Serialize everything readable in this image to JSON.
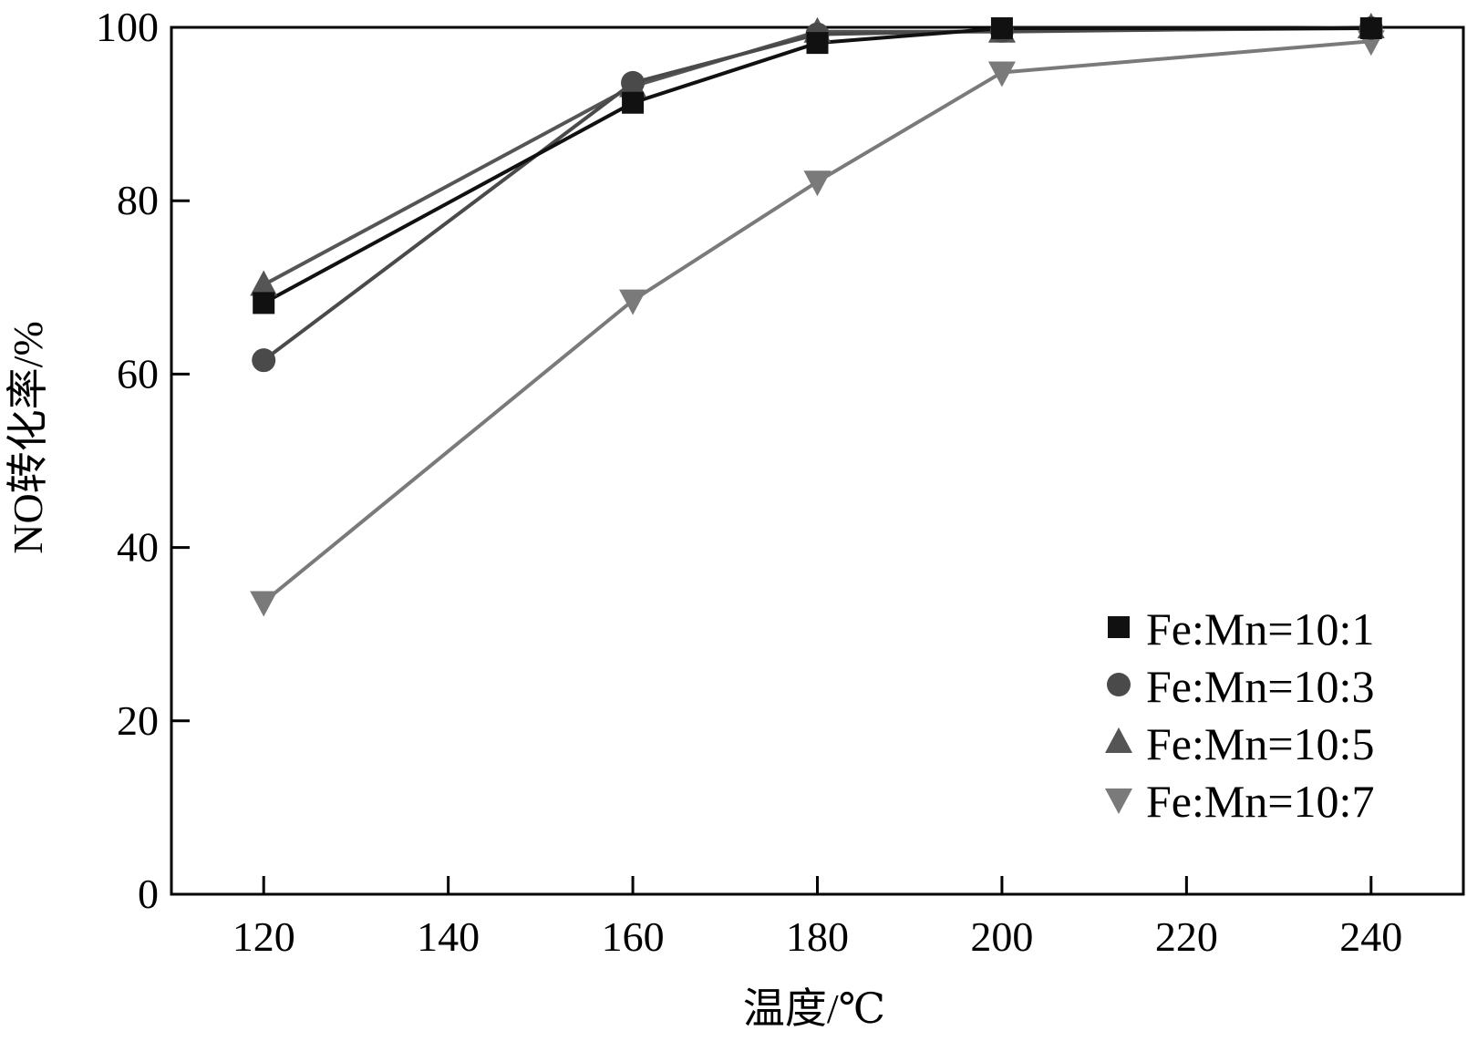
{
  "chart_data": {
    "type": "line",
    "title": "",
    "xlabel": "温度/℃",
    "ylabel": "NO转化率/%",
    "xlim": [
      110,
      250
    ],
    "ylim": [
      0,
      100
    ],
    "x_ticks": [
      120,
      140,
      160,
      180,
      200,
      220,
      240
    ],
    "y_ticks": [
      0,
      20,
      40,
      60,
      80,
      100
    ],
    "grid": false,
    "legend_position": "bottom-right",
    "series": [
      {
        "name": "Fe:Mn=10:1",
        "marker": "square",
        "color": "#111111",
        "x": [
          120,
          160,
          180,
          200,
          240
        ],
        "y": [
          68.2,
          91.3,
          98.2,
          99.9,
          99.9
        ]
      },
      {
        "name": "Fe:Mn=10:3",
        "marker": "circle",
        "color": "#4a4a4a",
        "x": [
          120,
          160,
          180,
          200,
          240
        ],
        "y": [
          61.6,
          93.6,
          99.2,
          99.6,
          99.9
        ]
      },
      {
        "name": "Fe:Mn=10:5",
        "marker": "triangle-up",
        "color": "#555555",
        "x": [
          120,
          160,
          180,
          200,
          240
        ],
        "y": [
          70.3,
          93.2,
          99.5,
          99.5,
          100.0
        ]
      },
      {
        "name": "Fe:Mn=10:7",
        "marker": "triangle-down",
        "color": "#7a7a7a",
        "x": [
          120,
          160,
          180,
          200,
          240
        ],
        "y": [
          33.7,
          68.5,
          82.2,
          94.8,
          98.4
        ]
      }
    ]
  }
}
